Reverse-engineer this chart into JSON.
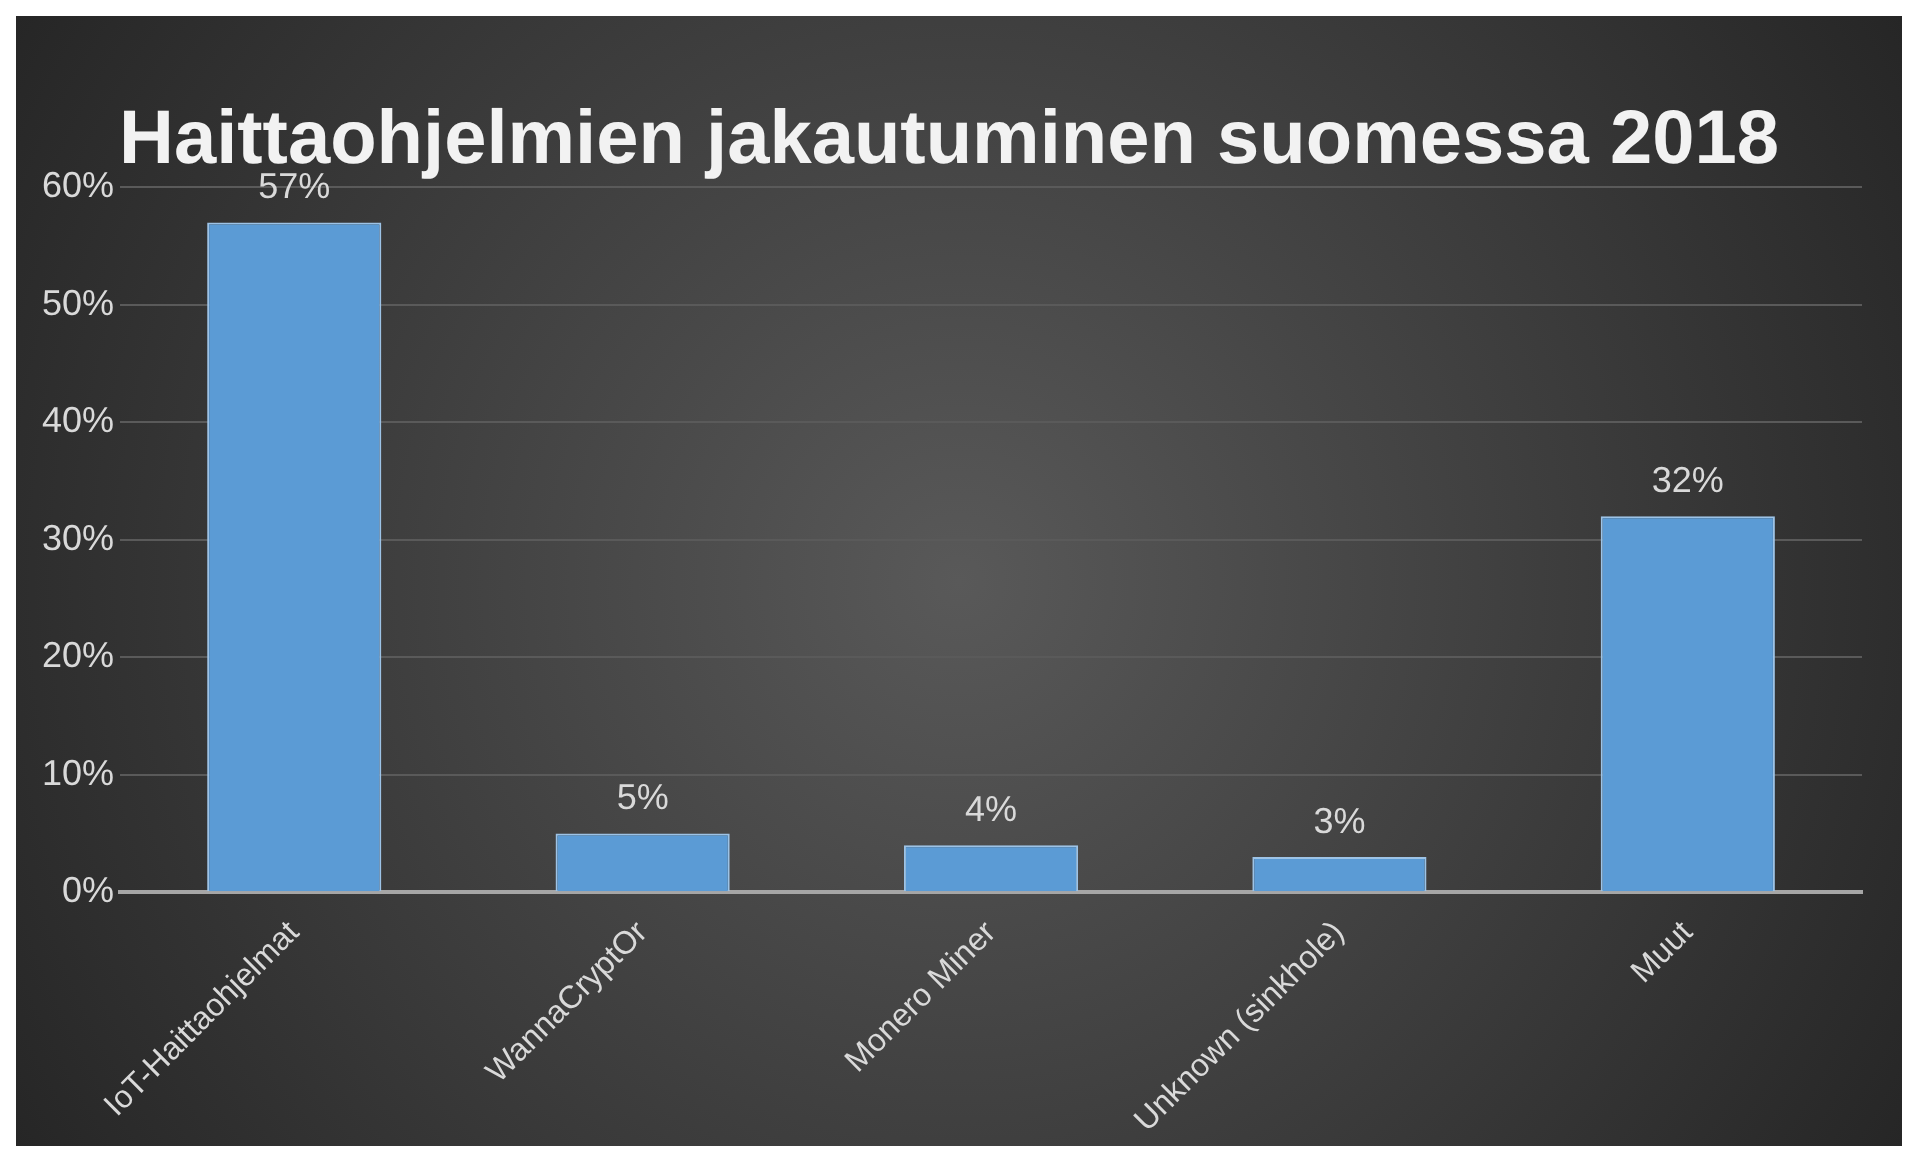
{
  "chart_data": {
    "type": "bar",
    "title": "Haittaohjelmien jakautuminen suomessa 2018",
    "categories": [
      "IoT-Haittaohjelmat",
      "WannaCryptOr",
      "Monero Miner",
      "Unknown (sinkhole)",
      "Muut"
    ],
    "values": [
      57,
      5,
      4,
      3,
      32
    ],
    "color": "#5b9bd5",
    "value_labels": [
      "57%",
      "5%",
      "4%",
      "3%",
      "32%"
    ],
    "ylim": [
      0,
      60
    ],
    "yticks": [
      {
        "value": 0,
        "label": "0%"
      },
      {
        "value": 10,
        "label": "10%"
      },
      {
        "value": 20,
        "label": "20%"
      },
      {
        "value": 30,
        "label": "30%"
      },
      {
        "value": 40,
        "label": "40%"
      },
      {
        "value": 50,
        "label": "50%"
      },
      {
        "value": 60,
        "label": "60%"
      }
    ],
    "grid": "y"
  }
}
